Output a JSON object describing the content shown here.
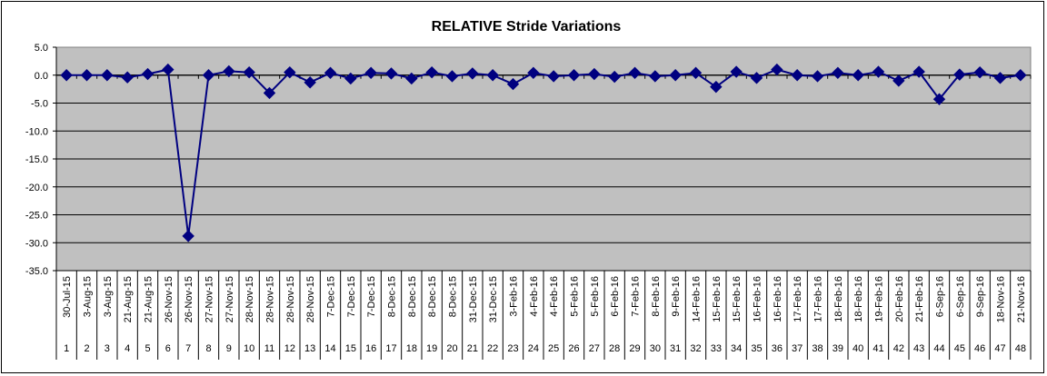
{
  "chart_data": {
    "type": "line",
    "title": "RELATIVE Stride Variations",
    "xlabel": "",
    "ylabel": "",
    "ylim": [
      -35.0,
      5.0
    ],
    "y_ticks": [
      "5.0",
      "0.0",
      "-5.0",
      "-10.0",
      "-15.0",
      "-20.0",
      "-25.0",
      "-30.0",
      "-35.0"
    ],
    "grid": "horizontal",
    "plot_background": "#c0c0c0",
    "series_color": "#000080",
    "categories": [
      "30-Jul-15",
      "3-Aug-15",
      "3-Aug-15",
      "21-Aug-15",
      "21-Aug-15",
      "26-Nov-15",
      "26-Nov-15",
      "27-Nov-15",
      "27-Nov-15",
      "28-Nov-15",
      "28-Nov-15",
      "28-Nov-15",
      "28-Nov-15",
      "7-Dec-15",
      "7-Dec-15",
      "7-Dec-15",
      "8-Dec-15",
      "8-Dec-15",
      "8-Dec-15",
      "8-Dec-15",
      "31-Dec-15",
      "31-Dec-15",
      "3-Feb-16",
      "4-Feb-16",
      "4-Feb-16",
      "5-Feb-16",
      "5-Feb-16",
      "6-Feb-16",
      "7-Feb-16",
      "8-Feb-16",
      "9-Feb-16",
      "14-Feb-16",
      "15-Feb-16",
      "15-Feb-16",
      "16-Feb-16",
      "16-Feb-16",
      "17-Feb-16",
      "17-Feb-16",
      "18-Feb-16",
      "18-Feb-16",
      "19-Feb-16",
      "20-Feb-16",
      "21-Feb-16",
      "6-Sep-16",
      "6-Sep-16",
      "9-Sep-16",
      "18-Nov-16",
      "21-Nov-16"
    ],
    "index_labels": [
      "1",
      "2",
      "3",
      "4",
      "5",
      "6",
      "7",
      "8",
      "9",
      "10",
      "11",
      "12",
      "13",
      "14",
      "15",
      "16",
      "17",
      "18",
      "19",
      "20",
      "21",
      "22",
      "23",
      "24",
      "25",
      "26",
      "27",
      "28",
      "29",
      "30",
      "31",
      "32",
      "33",
      "34",
      "35",
      "36",
      "37",
      "38",
      "39",
      "40",
      "41",
      "42",
      "43",
      "44",
      "45",
      "46",
      "47",
      "48"
    ],
    "series": [
      {
        "values": [
          0.0,
          0.0,
          0.0,
          -0.4,
          0.2,
          1.0,
          -28.8,
          0.0,
          0.7,
          0.5,
          -3.2,
          0.5,
          -1.3,
          0.4,
          -0.6,
          0.4,
          0.3,
          -0.6,
          0.5,
          -0.2,
          0.3,
          0.0,
          -1.6,
          0.4,
          -0.2,
          0.0,
          0.2,
          -0.3,
          0.4,
          -0.2,
          0.0,
          0.4,
          -2.1,
          0.6,
          -0.5,
          1.0,
          0.0,
          -0.2,
          0.4,
          0.0,
          0.6,
          -1.0,
          0.6,
          -4.3,
          0.1,
          0.5,
          -0.5,
          0.0
        ]
      }
    ]
  }
}
